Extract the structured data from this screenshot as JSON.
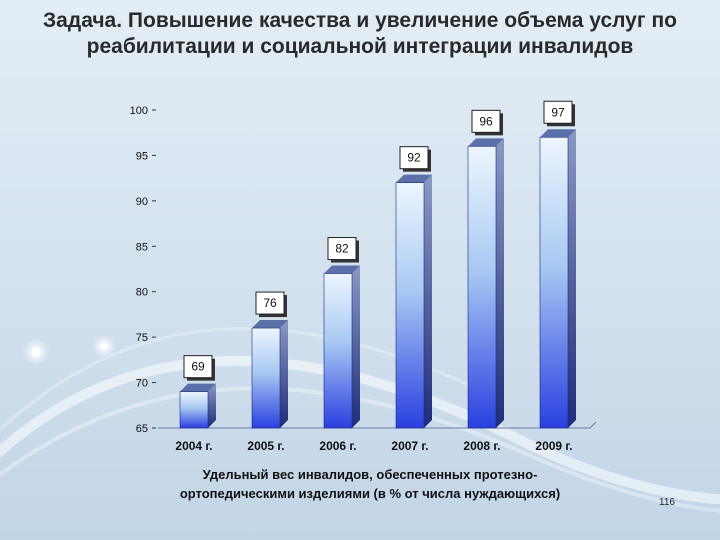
{
  "title": "Задача. Повышение качества и увеличение объема услуг по реабилитации и социальной интеграции инвалидов",
  "page_number": "116",
  "chart_data": {
    "type": "bar",
    "categories": [
      "2004 г.",
      "2005 г.",
      "2006 г.",
      "2007 г.",
      "2008 г.",
      "2009 г."
    ],
    "values": [
      69,
      76,
      82,
      92,
      96,
      97
    ],
    "data_labels": [
      "69",
      "76",
      "82",
      "92",
      "96",
      "97"
    ],
    "xlabel": "Удельный вес инвалидов, обеспеченных протезно-ортопедическими изделиями (в % от числа нуждающихся)",
    "ylabel": "",
    "ylim": [
      65,
      100
    ],
    "yticks": [
      65,
      70,
      75,
      80,
      85,
      90,
      95,
      100
    ],
    "ytick_labels": [
      "65",
      "70",
      "75",
      "80",
      "85",
      "90",
      "95",
      "100"
    ],
    "grid": false,
    "legend": "none",
    "bar_colors": {
      "top": "#eef6ff",
      "bottom": "#2a3fe0",
      "side": "#3a4d8a",
      "cap": "#5b6fa8"
    }
  }
}
